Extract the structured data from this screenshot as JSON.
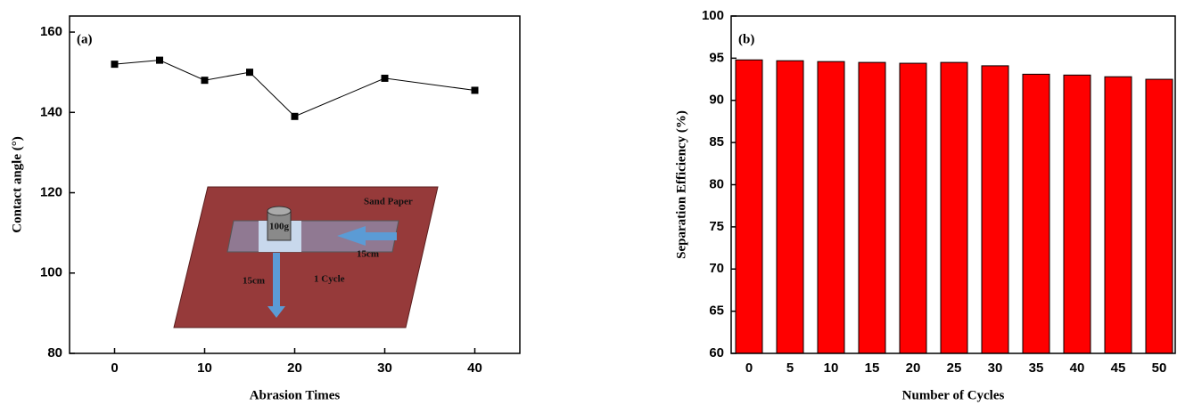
{
  "chart_data": [
    {
      "type": "line",
      "title": "(a)",
      "x_label": "Abrasion Times",
      "y_label": "Contact angle (°)",
      "x": [
        0,
        5,
        10,
        15,
        20,
        30,
        40
      ],
      "values": [
        152,
        153,
        148,
        150,
        139,
        148.5,
        145.5
      ],
      "color": "#000000",
      "xlim": [
        -5,
        45
      ],
      "xticks": [
        0,
        10,
        20,
        30,
        40
      ],
      "ylim": [
        80,
        164
      ],
      "yticks": [
        80,
        100,
        120,
        140,
        160
      ],
      "inset_labels": [
        "Sand Paper",
        "100g",
        "15cm",
        "15cm",
        "1 Cycle"
      ]
    },
    {
      "type": "bar",
      "title": "(b)",
      "x_label": "Number of Cycles",
      "y_label": "Separation Efficiency (%)",
      "categories": [
        "0",
        "5",
        "10",
        "15",
        "20",
        "25",
        "30",
        "35",
        "40",
        "45",
        "50"
      ],
      "values": [
        94.8,
        94.7,
        94.6,
        94.5,
        94.4,
        94.5,
        94.1,
        93.1,
        93.0,
        92.8,
        92.5
      ],
      "color": "#ff0000",
      "ylim": [
        60,
        100
      ],
      "yticks": [
        60,
        65,
        70,
        75,
        80,
        85,
        90,
        95,
        100
      ]
    }
  ]
}
